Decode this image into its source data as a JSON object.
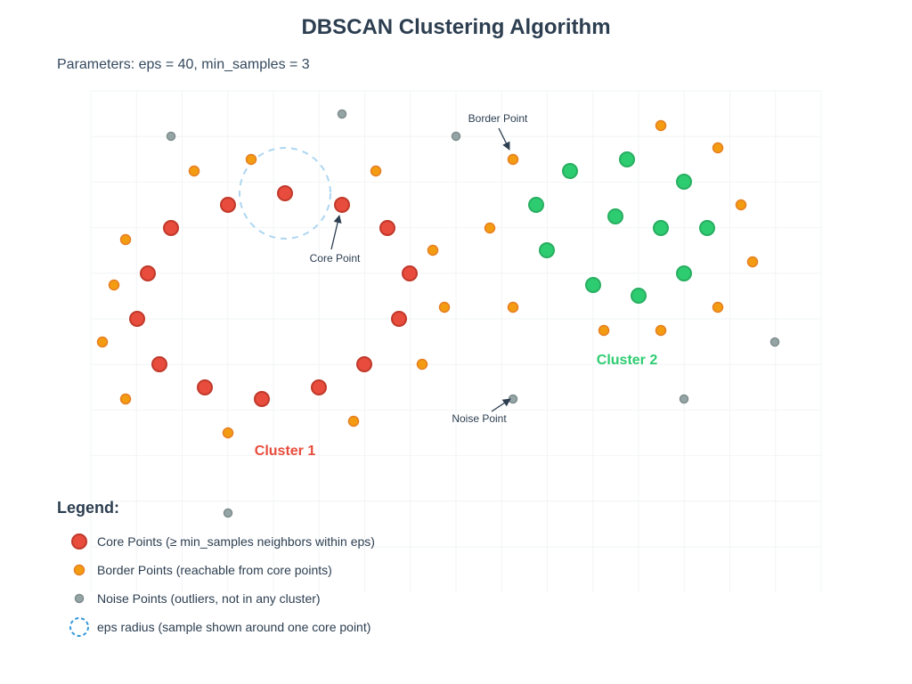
{
  "title": "DBSCAN Clustering Algorithm",
  "parameters_text": "Parameters: eps = 40, min_samples = 3",
  "colors": {
    "cluster1_core": "#e74c3c",
    "cluster2_core": "#2ecc71",
    "border": "#f39c12",
    "noise": "#95a5a6",
    "eps_circle": "#aed6f1",
    "legend_eps": "#3498db",
    "text": "#2c3e50",
    "grid": "#f2f4f6"
  },
  "annotations": {
    "core_point": "Core Point",
    "border_point": "Border Point",
    "noise_point": "Noise Point"
  },
  "cluster_labels": {
    "cluster1": "Cluster 1",
    "cluster2": "Cluster 2"
  },
  "legend": {
    "title": "Legend:",
    "items": [
      "Core Points (≥ min_samples neighbors within eps)",
      "Border Points (reachable from core points)",
      "Noise Points (outliers, not in any cluster)",
      "eps radius (sample shown around one core point)"
    ]
  }
}
